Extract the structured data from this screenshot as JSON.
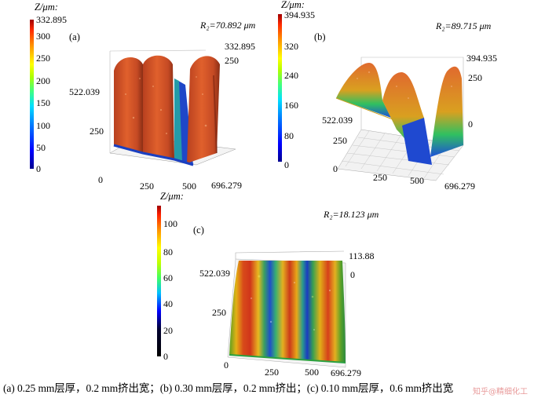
{
  "panels": [
    {
      "id": "a",
      "panel_label": "(a)",
      "cb_title": "Z/μm:",
      "cb_max": "332.895",
      "cb_ticks": [
        "300",
        "250",
        "200",
        "150",
        "100",
        "50",
        "0"
      ],
      "r2": "R₂=70.892 μm",
      "z_top_label": "332.895",
      "z_tick": "250",
      "y_max_label": "522.039",
      "y_tick": "250",
      "x_zero": "0",
      "x_ticks": [
        "250",
        "500"
      ],
      "x_max": "696.279"
    },
    {
      "id": "b",
      "panel_label": "(b)",
      "cb_title": "Z/μm:",
      "cb_max": "394.935",
      "cb_ticks": [
        "320",
        "240",
        "160",
        "80",
        "0"
      ],
      "r2": "R₂=89.715 μm",
      "z_top_label": "394.935",
      "z_tick": "250",
      "z_zero": "0",
      "y_max_label": "522.039",
      "y_tick": "250",
      "x_zero": "0",
      "x_ticks": [
        "250",
        "500"
      ],
      "x_max": "696.279"
    },
    {
      "id": "c",
      "panel_label": "(c)",
      "cb_title": "Z/μm:",
      "cb_ticks": [
        "100",
        "80",
        "60",
        "40",
        "20",
        "0"
      ],
      "r2": "R₂=18.123 μm",
      "z_top_label": "113.88",
      "z_zero": "0",
      "y_max_label": "522.039",
      "y_tick": "250",
      "x_zero": "0",
      "x_ticks": [
        "250",
        "500"
      ],
      "x_max": "696.279"
    }
  ],
  "caption": "(a) 0.25 mm层厚，0.2 mm挤出宽；(b) 0.30 mm层厚，0.2 mm挤出；(c) 0.10 mm层厚，0.6 mm挤出宽",
  "watermark": "知乎@精细化工",
  "colors": {
    "jet": [
      "#00008f",
      "#0000ff",
      "#0080ff",
      "#00ffff",
      "#40ff80",
      "#a0ff00",
      "#ffff00",
      "#ff9900",
      "#ff3000",
      "#a00000"
    ],
    "surface_main": "#d2552f",
    "surface_blue": "#2255d0"
  }
}
